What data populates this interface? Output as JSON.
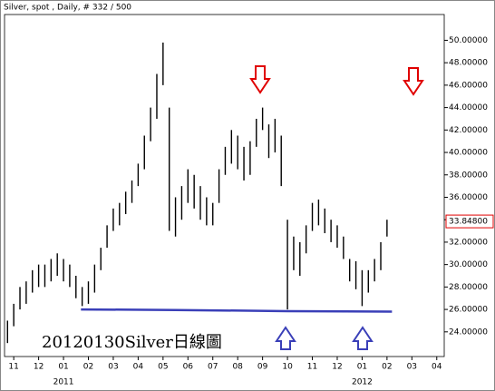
{
  "chart_data": {
    "type": "ohlc",
    "title": "Silver, spot , Daily, # 332 / 500",
    "annotation": "20120130Silver日線圖",
    "series": [
      {
        "name": "Silver",
        "color": "#000000",
        "x": [
          -0.25,
          0,
          0.25,
          0.5,
          0.75,
          1,
          1.25,
          1.5,
          1.75,
          2,
          2.25,
          2.5,
          2.75,
          3,
          3.25,
          3.5,
          3.75,
          4,
          4.25,
          4.5,
          4.75,
          5,
          5.25,
          5.5,
          5.75,
          6,
          6.25,
          6.5,
          6.75,
          7,
          7.25,
          7.5,
          7.75,
          8,
          8.25,
          8.5,
          8.75,
          9,
          9.25,
          9.5,
          9.75,
          10,
          10.25,
          10.5,
          10.75,
          11,
          11.25,
          11.5,
          11.75,
          12,
          12.25,
          12.5,
          12.75,
          13,
          13.25,
          13.5,
          13.75,
          14,
          14.25,
          14.5,
          14.75,
          15
        ],
        "high": [
          25,
          26.5,
          28,
          28.5,
          29.5,
          30,
          30,
          30.5,
          31,
          30.5,
          30,
          29,
          28,
          28.5,
          30,
          31.5,
          33.5,
          35,
          35.5,
          36.5,
          37.5,
          39,
          41.5,
          44,
          47,
          49.8,
          44,
          36,
          37,
          38.5,
          38,
          37,
          36,
          35.5,
          38.5,
          40.5,
          42,
          41.5,
          40.5,
          41,
          43,
          44,
          42.5,
          43,
          41.5,
          34,
          32.5,
          32,
          33.5,
          35.5,
          35.8,
          35,
          34,
          33.5,
          32.5,
          30.5,
          30.3,
          29.5,
          29.5,
          30.5,
          32,
          34
        ],
        "low": [
          23,
          24.5,
          26,
          26.5,
          27.5,
          28,
          28,
          28.5,
          29,
          28.5,
          28,
          27,
          26.3,
          26.5,
          27.5,
          29.5,
          31.5,
          33,
          33.5,
          34.5,
          35.5,
          37,
          38.5,
          41,
          43,
          46,
          33,
          32.5,
          34,
          35.5,
          35,
          34,
          33.5,
          33.5,
          35.5,
          38,
          39,
          38.5,
          37.5,
          38,
          40.5,
          42,
          39.5,
          40,
          37,
          26,
          29.5,
          29,
          31,
          33,
          33.5,
          32.8,
          32,
          31.5,
          30.5,
          28.5,
          27.8,
          26.3,
          27.5,
          28.5,
          29.5,
          32.5
        ]
      }
    ],
    "xlim": [
      -0.37,
      17.3
    ],
    "xticks": [
      {
        "value": 0,
        "label": "11"
      },
      {
        "value": 1,
        "label": "12"
      },
      {
        "value": 2,
        "label": "01"
      },
      {
        "value": 3,
        "label": "02"
      },
      {
        "value": 4,
        "label": "03"
      },
      {
        "value": 5,
        "label": "04"
      },
      {
        "value": 6,
        "label": "05"
      },
      {
        "value": 7,
        "label": "06"
      },
      {
        "value": 8,
        "label": "07"
      },
      {
        "value": 9,
        "label": "08"
      },
      {
        "value": 10,
        "label": "09"
      },
      {
        "value": 11,
        "label": "10"
      },
      {
        "value": 12,
        "label": "11"
      },
      {
        "value": 13,
        "label": "12"
      },
      {
        "value": 14,
        "label": "01"
      },
      {
        "value": 15,
        "label": "02"
      },
      {
        "value": 16,
        "label": "03"
      },
      {
        "value": 17,
        "label": "04"
      }
    ],
    "year_labels": [
      {
        "value": 2,
        "label": "2011"
      },
      {
        "value": 14,
        "label": "2012"
      }
    ],
    "ylim": [
      21.8,
      52.3
    ],
    "yticks": [
      {
        "value": 24,
        "label": "24.00000"
      },
      {
        "value": 26,
        "label": "26.00000"
      },
      {
        "value": 28,
        "label": "28.00000"
      },
      {
        "value": 30,
        "label": "30.00000"
      },
      {
        "value": 32,
        "label": "32.00000"
      },
      {
        "value": 34,
        "label": "34.00000"
      },
      {
        "value": 36,
        "label": "36.00000"
      },
      {
        "value": 38,
        "label": "38.00000"
      },
      {
        "value": 40,
        "label": "40.00000"
      },
      {
        "value": 42,
        "label": "42.00000"
      },
      {
        "value": 44,
        "label": "44.00000"
      },
      {
        "value": 46,
        "label": "46.00000"
      },
      {
        "value": 48,
        "label": "48.00000"
      },
      {
        "value": 50,
        "label": "50.00000"
      }
    ],
    "last_price": {
      "value": 33.848,
      "label": "33.84800",
      "color": "#e00000"
    },
    "support_line": {
      "color": "#3a3fb8",
      "x": [
        2.7,
        6.5,
        11,
        15.2
      ],
      "y": [
        26.0,
        25.95,
        25.85,
        25.8
      ]
    },
    "grid": false
  }
}
